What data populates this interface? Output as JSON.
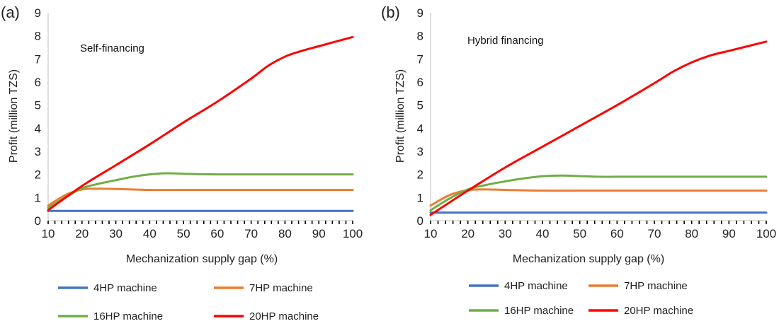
{
  "chart_data": [
    {
      "type": "line",
      "panel_label": "(a)",
      "annotation": "Self-financing",
      "xlabel": "Mechanization supply gap (%)",
      "ylabel": "Profit (million TZS)",
      "xlim": [
        10,
        100
      ],
      "ylim": [
        0,
        9
      ],
      "x_ticks": [
        "10",
        "20",
        "30",
        "40",
        "50",
        "60",
        "70",
        "80",
        "90",
        "100"
      ],
      "y_ticks": [
        "0",
        "1",
        "2",
        "3",
        "4",
        "5",
        "6",
        "7",
        "8",
        "9"
      ],
      "grid": false,
      "legend_position": "bottom",
      "series": [
        {
          "name": "4HP machine",
          "color": "#4472c4",
          "x": [
            10,
            20,
            30,
            40,
            50,
            60,
            70,
            80,
            90,
            100
          ],
          "y": [
            0.42,
            0.42,
            0.42,
            0.42,
            0.42,
            0.42,
            0.42,
            0.42,
            0.42,
            0.42
          ]
        },
        {
          "name": "7HP machine",
          "color": "#ed7d31",
          "x": [
            10,
            15,
            20,
            25,
            30,
            40,
            50,
            60,
            70,
            80,
            90,
            100
          ],
          "y": [
            0.65,
            1.1,
            1.35,
            1.38,
            1.37,
            1.33,
            1.33,
            1.33,
            1.33,
            1.33,
            1.33,
            1.33
          ]
        },
        {
          "name": "16HP machine",
          "color": "#70ad47",
          "x": [
            10,
            15,
            20,
            25,
            30,
            35,
            40,
            45,
            50,
            55,
            60,
            70,
            80,
            90,
            100
          ],
          "y": [
            0.55,
            1.0,
            1.4,
            1.6,
            1.75,
            1.9,
            2.0,
            2.05,
            2.03,
            2.01,
            2.0,
            2.0,
            2.0,
            2.0,
            2.0
          ]
        },
        {
          "name": "20HP machine",
          "color": "#ff0000",
          "x": [
            10,
            20,
            30,
            40,
            50,
            60,
            70,
            75,
            80,
            85,
            90,
            95,
            100
          ],
          "y": [
            0.45,
            1.5,
            2.4,
            3.3,
            4.25,
            5.15,
            6.15,
            6.7,
            7.1,
            7.35,
            7.55,
            7.75,
            7.95
          ]
        }
      ]
    },
    {
      "type": "line",
      "panel_label": "(b)",
      "annotation": "Hybrid financing",
      "xlabel": "Mechanization supply gap (%)",
      "ylabel": "Profit (million TZS)",
      "xlim": [
        10,
        100
      ],
      "ylim": [
        0,
        9
      ],
      "x_ticks": [
        "10",
        "20",
        "30",
        "40",
        "50",
        "60",
        "70",
        "80",
        "90",
        "100"
      ],
      "y_ticks": [
        "0",
        "1",
        "2",
        "3",
        "4",
        "5",
        "6",
        "7",
        "8",
        "9"
      ],
      "grid": false,
      "legend_position": "bottom",
      "series": [
        {
          "name": "4HP machine",
          "color": "#4472c4",
          "x": [
            10,
            20,
            30,
            40,
            50,
            60,
            70,
            80,
            90,
            100
          ],
          "y": [
            0.35,
            0.35,
            0.35,
            0.35,
            0.35,
            0.35,
            0.35,
            0.35,
            0.35,
            0.35
          ]
        },
        {
          "name": "7HP machine",
          "color": "#ed7d31",
          "x": [
            10,
            15,
            20,
            25,
            30,
            40,
            50,
            60,
            70,
            80,
            90,
            100
          ],
          "y": [
            0.65,
            1.1,
            1.32,
            1.35,
            1.33,
            1.3,
            1.3,
            1.3,
            1.3,
            1.3,
            1.3,
            1.3
          ]
        },
        {
          "name": "16HP machine",
          "color": "#70ad47",
          "x": [
            10,
            15,
            20,
            25,
            30,
            35,
            40,
            45,
            50,
            55,
            60,
            70,
            80,
            90,
            100
          ],
          "y": [
            0.45,
            0.95,
            1.35,
            1.55,
            1.7,
            1.83,
            1.92,
            1.95,
            1.93,
            1.9,
            1.9,
            1.9,
            1.9,
            1.9,
            1.9
          ]
        },
        {
          "name": "20HP machine",
          "color": "#ff0000",
          "x": [
            10,
            20,
            30,
            40,
            50,
            60,
            70,
            75,
            80,
            85,
            90,
            95,
            100
          ],
          "y": [
            0.25,
            1.3,
            2.3,
            3.2,
            4.1,
            5.0,
            5.95,
            6.45,
            6.85,
            7.15,
            7.35,
            7.55,
            7.75
          ]
        }
      ]
    }
  ]
}
